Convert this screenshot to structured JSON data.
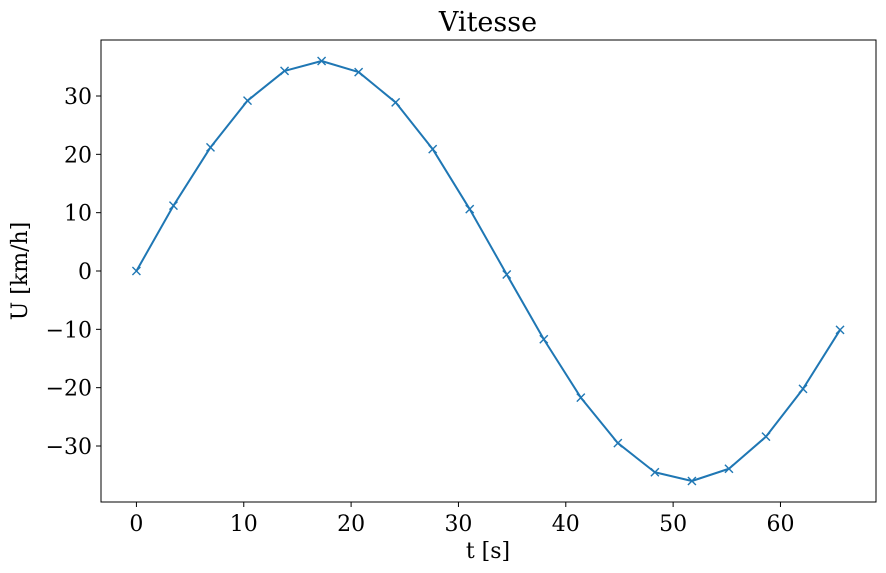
{
  "chart_data": {
    "type": "line",
    "title": "Vitesse",
    "xlabel": "t [s]",
    "ylabel": "U [km/h]",
    "xlim": [
      -3.3,
      68.9
    ],
    "ylim": [
      -39.6,
      39.6
    ],
    "xticks": [
      0,
      10,
      20,
      30,
      40,
      50,
      60
    ],
    "yticks": [
      -30,
      -20,
      -10,
      0,
      10,
      20,
      30
    ],
    "xtick_labels": [
      "0",
      "10",
      "20",
      "30",
      "40",
      "50",
      "60"
    ],
    "ytick_labels": [
      "−30",
      "−20",
      "−10",
      "0",
      "10",
      "20",
      "30"
    ],
    "grid": false,
    "series": [
      {
        "color": "#1f77b4",
        "marker": "x",
        "x": [
          0,
          3.45,
          6.9,
          10.35,
          13.8,
          17.25,
          20.7,
          24.15,
          27.6,
          31.05,
          34.5,
          37.95,
          41.4,
          44.85,
          48.3,
          51.75,
          55.2,
          58.65,
          62.1,
          65.55
        ],
        "y": [
          0,
          11.2,
          21.2,
          29.2,
          34.3,
          36.0,
          34.1,
          28.9,
          20.9,
          10.6,
          -0.6,
          -11.7,
          -21.7,
          -29.5,
          -34.5,
          -36.0,
          -33.9,
          -28.4,
          -20.2,
          -10.1
        ]
      }
    ]
  }
}
